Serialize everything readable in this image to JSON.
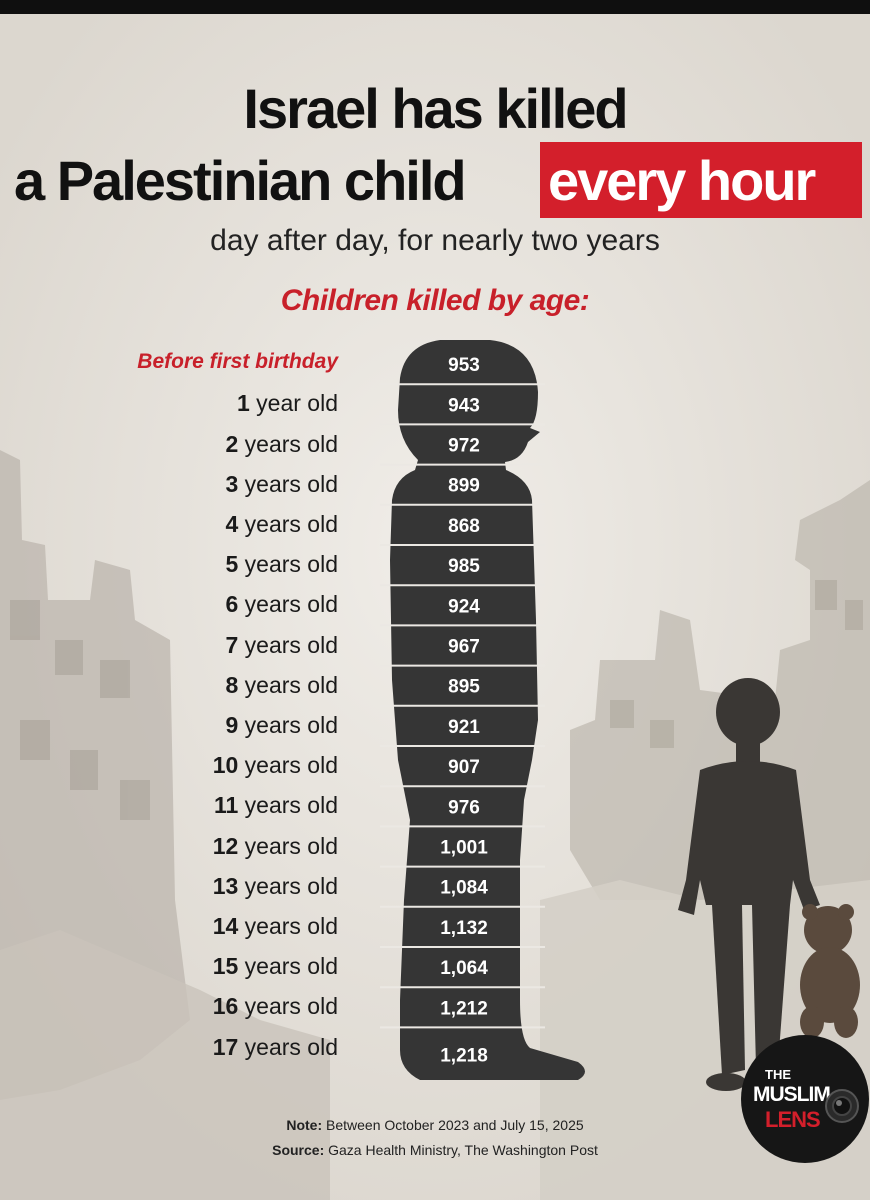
{
  "header": {
    "title_line1": "Israel has killed",
    "title_line2": "a Palestinian child",
    "title_highlight": "every hour",
    "subtitle": "day after day, for nearly two years",
    "section_title": "Children killed by age:"
  },
  "chart_data": {
    "type": "table",
    "categories": [
      "Before first birthday",
      "1 year old",
      "2 years old",
      "3 years old",
      "4 years old",
      "5 years old",
      "6 years old",
      "7 years old",
      "8 years old",
      "9 years old",
      "10 years old",
      "11 years old",
      "12 years old",
      "13 years old",
      "14 years old",
      "15 years old",
      "16 years old",
      "17 years old"
    ],
    "value_labels": [
      "953",
      "943",
      "972",
      "899",
      "868",
      "985",
      "924",
      "967",
      "895",
      "921",
      "907",
      "976",
      "1,001",
      "1,084",
      "1,132",
      "1,064",
      "1,212",
      "1,218"
    ],
    "values": [
      953,
      943,
      972,
      899,
      868,
      985,
      924,
      967,
      895,
      921,
      907,
      976,
      1001,
      1084,
      1132,
      1064,
      1212,
      1218
    ],
    "title": "Children killed by age:"
  },
  "footer": {
    "note_label": "Note:",
    "note_text": "Between October 2023 and July 15, 2025",
    "source_label": "Source:",
    "source_text": "Gaza Health Ministry, The Washington Post"
  },
  "logo": {
    "line1": "THE",
    "line2": "MUSLIM",
    "line3": "LENS"
  },
  "colors": {
    "accent_red": "#d31f2b",
    "silhouette": "#353535",
    "background": "#ebe8e3"
  }
}
